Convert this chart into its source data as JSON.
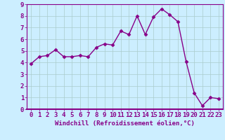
{
  "x": [
    0,
    1,
    2,
    3,
    4,
    5,
    6,
    7,
    8,
    9,
    10,
    11,
    12,
    13,
    14,
    15,
    16,
    17,
    18,
    19,
    20,
    21,
    22,
    23
  ],
  "y": [
    3.9,
    4.5,
    4.6,
    5.1,
    4.5,
    4.5,
    4.6,
    4.5,
    5.3,
    5.6,
    5.5,
    6.7,
    6.4,
    8.0,
    6.4,
    7.9,
    8.6,
    8.1,
    7.5,
    4.1,
    1.4,
    0.3,
    1.0,
    0.9
  ],
  "line_color": "#880088",
  "marker": "D",
  "marker_size": 2.5,
  "bg_color": "#cceeff",
  "grid_color": "#aacccc",
  "border_color": "#880088",
  "xlabel": "Windchill (Refroidissement éolien,°C)",
  "ylabel": "",
  "ylim": [
    0,
    9
  ],
  "xlim": [
    -0.5,
    23.5
  ],
  "yticks": [
    0,
    1,
    2,
    3,
    4,
    5,
    6,
    7,
    8,
    9
  ],
  "xticks": [
    0,
    1,
    2,
    3,
    4,
    5,
    6,
    7,
    8,
    9,
    10,
    11,
    12,
    13,
    14,
    15,
    16,
    17,
    18,
    19,
    20,
    21,
    22,
    23
  ],
  "label_color": "#880088",
  "tick_color": "#880088",
  "font_size_xlabel": 6.5,
  "font_size_ticks": 6.5,
  "linewidth": 1.0
}
